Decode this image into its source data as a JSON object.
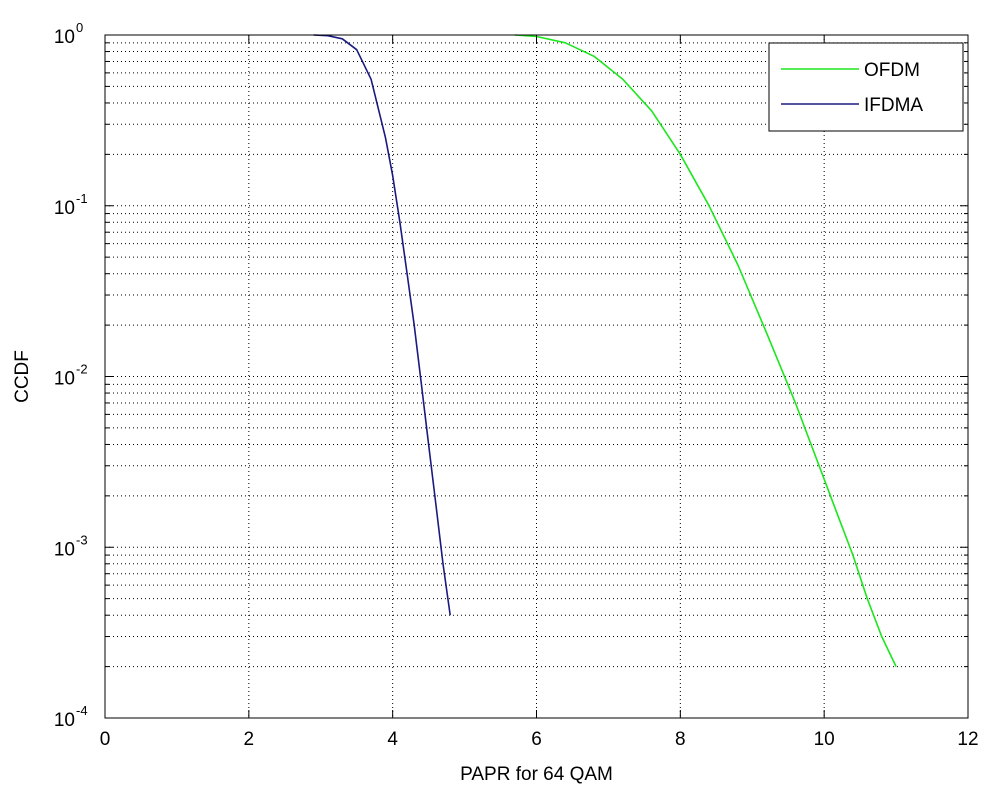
{
  "chart_data": {
    "type": "line",
    "title": "",
    "xlabel": "PAPR for 64 QAM",
    "ylabel": "CCDF",
    "xlim": [
      0,
      12
    ],
    "ylim": [
      0.0001,
      1
    ],
    "yscale": "log",
    "x_ticks": [
      0,
      2,
      4,
      6,
      8,
      10,
      12
    ],
    "x_tick_labels": [
      "0",
      "2",
      "4",
      "6",
      "8",
      "10",
      "12"
    ],
    "y_ticks": [
      {
        "value": 0.0001,
        "base": "10",
        "exp": "-4"
      },
      {
        "value": 0.001,
        "base": "10",
        "exp": "-3"
      },
      {
        "value": 0.01,
        "base": "10",
        "exp": "-2"
      },
      {
        "value": 0.1,
        "base": "10",
        "exp": "-1"
      },
      {
        "value": 1,
        "base": "10",
        "exp": "0"
      }
    ],
    "grid": true,
    "minor_grid": true,
    "legend_position": "top-right",
    "series": [
      {
        "name": "OFDM",
        "color": "#1ee61e",
        "x": [
          5.7,
          6.0,
          6.4,
          6.8,
          7.2,
          7.6,
          8.0,
          8.4,
          8.8,
          9.2,
          9.6,
          10.0,
          10.2,
          10.4,
          10.6,
          10.8,
          11.0
        ],
        "y": [
          1.0,
          0.98,
          0.9,
          0.75,
          0.55,
          0.36,
          0.2,
          0.1,
          0.045,
          0.018,
          0.007,
          0.0025,
          0.0015,
          0.0009,
          0.0005,
          0.0003,
          0.0002
        ]
      },
      {
        "name": "IFDMA",
        "color": "#1a1a80",
        "x": [
          2.9,
          3.1,
          3.3,
          3.5,
          3.7,
          3.9,
          4.0,
          4.1,
          4.2,
          4.3,
          4.4,
          4.5,
          4.6,
          4.7,
          4.8
        ],
        "y": [
          1.0,
          0.99,
          0.95,
          0.82,
          0.55,
          0.25,
          0.15,
          0.08,
          0.04,
          0.02,
          0.009,
          0.004,
          0.0018,
          0.0008,
          0.0004
        ]
      }
    ]
  }
}
